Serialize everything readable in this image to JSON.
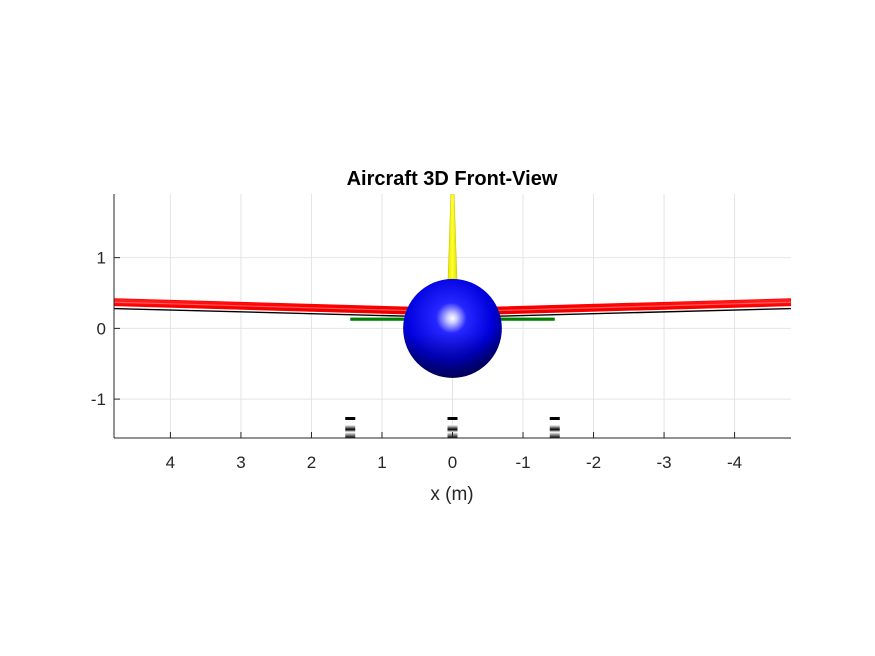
{
  "chart_data": {
    "type": "3d-surface",
    "title": "Aircraft 3D Front-View",
    "xlabel": "x (m)",
    "ylabel": "",
    "xlim": [
      4.8,
      -4.8
    ],
    "ylim": [
      -1.55,
      1.9
    ],
    "x_reversed": true,
    "grid": true,
    "xticks": [
      4,
      3,
      2,
      1,
      0,
      -1,
      -2,
      -3,
      -4
    ],
    "yticks": [
      1,
      0,
      -1
    ],
    "components": [
      {
        "name": "wing",
        "color": "#ff0000",
        "span": [
          -4.8,
          4.8
        ],
        "root_z": 0.25,
        "tip_z": 0.37,
        "thickness": 0.1
      },
      {
        "name": "wing-underside-edge",
        "color": "#000000",
        "span": [
          -4.8,
          4.8
        ],
        "root_z": 0.17,
        "tip_z": 0.28
      },
      {
        "name": "horizontal-tail",
        "color": "#008000",
        "span": [
          -1.45,
          1.45
        ],
        "z": 0.13
      },
      {
        "name": "vertical-tail",
        "color": "#ffff00",
        "x": 0,
        "z_range": [
          0.65,
          1.9
        ],
        "width_base": 0.13
      },
      {
        "name": "fuselage",
        "color": "#0000ff",
        "center": [
          0,
          0
        ],
        "radius": 0.7
      },
      {
        "name": "gear-left",
        "color": "#000000",
        "x": 1.45
      },
      {
        "name": "gear-center",
        "color": "#000000",
        "x": 0
      },
      {
        "name": "gear-right",
        "color": "#000000",
        "x": -1.45
      }
    ]
  }
}
